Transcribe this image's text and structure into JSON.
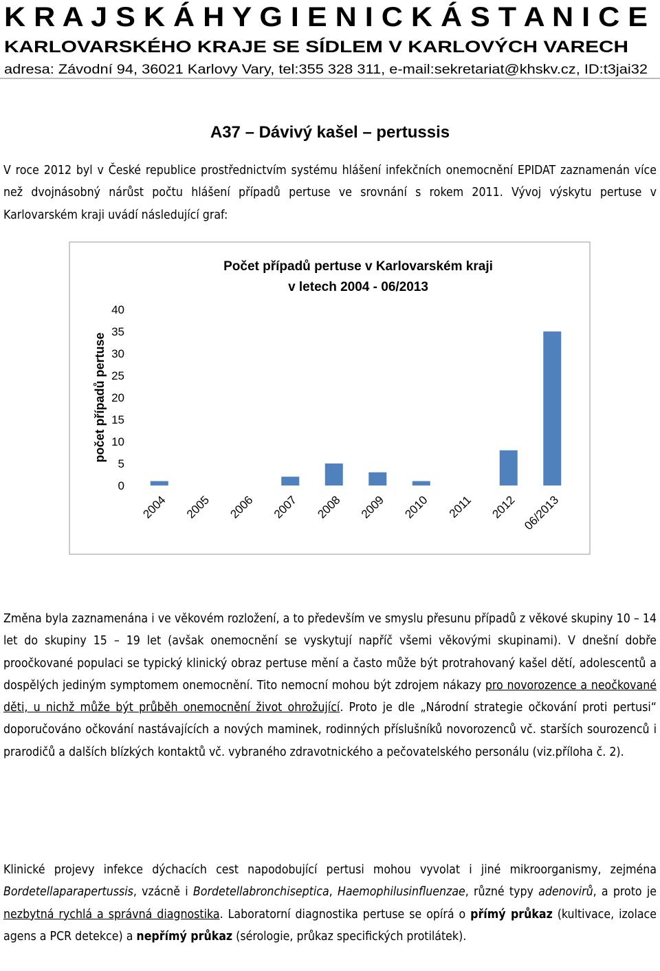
{
  "header": {
    "title": "K R A J S K Á   H Y G I E N I C K Á   S T A N I C E",
    "subtitle": "KARLOVARSKÉHO KRAJE SE SÍDLEM V KARLOVÝCH VARECH",
    "address": "adresa: Závodní 94, 36021 Karlovy Vary, tel:355 328 311,  e-mail:sekretariat@khskv.cz,  ID:t3jai32"
  },
  "heading": "A37 – Dávivý kašel – pertussis",
  "intro": "V roce 2012 byl v České republice prostřednictvím systému hlášení infekčních onemocnění EPIDAT zaznamenán více než dvojnásobný nárůst počtu hlášení případů pertuse ve srovnání s rokem 2011. Vývoj výskytu pertuse v Karlovarském kraji uvádí následující graf:",
  "chart_data": {
    "type": "bar",
    "title": [
      "Počet případů pertuse v Karlovarském kraji",
      "v letech 2004 - 06/2013"
    ],
    "y_label": "počet případů pertuse",
    "categories": [
      "2004",
      "2005",
      "2006",
      "2007",
      "2008",
      "2009",
      "2010",
      "2011",
      "2012",
      "06/2013"
    ],
    "values": [
      1,
      0,
      0,
      2,
      5,
      3,
      1,
      0,
      8,
      35
    ],
    "color": "#4f81bd",
    "ylim": [
      0,
      40
    ],
    "yticks": [
      0,
      5,
      10,
      15,
      20,
      25,
      30,
      35,
      40
    ],
    "grid": false
  },
  "paragraph_1": [
    "Změna byla zaznamenána i ve věkovém rozložení, a to především ve smyslu přesunu případů z věkové skupiny 10 – 14 let do skupiny 15 – 19 let (avšak onemocnění se vyskytují napříč všemi věkovými skupinami). V dnešní dobře proočkované populaci se typický klinický obraz pertuse mění a často může být protrahovaný kašel dětí, adolescentů a dospělých jediným symptomem onemocnění. Tito nemocní mohou být zdrojem nákazy ",
    "pro novorozence a neočkované děti, u nichž může být průběh onemocnění život ohrožující",
    ". Proto je dle „Národní strategie očkování proti pertusi“ doporučováno očkování nastávajících a nových maminek, rodinných příslušníků novorozenců vč. starších sourozenců i prarodičů a dalších blízkých kontaktů vč. vybraného zdravotnického a pečovatelského personálu (viz.příloha č. 2)."
  ],
  "paragraph_2": [
    "Klinické projevy infekce dýchacích cest napodobující pertusi  mohou vyvolat i jiné mikroorganismy, zejména ",
    "Bordetellaparapertussis",
    ", vzácně i ",
    "Bordetellabronchiseptica",
    ", ",
    "Haemophilusinfluenzae",
    ", různé typy ",
    "adenovirů",
    ", a proto je ",
    "nezbytná rychlá a správná diagnostika",
    ". Laboratorní diagnostika pertuse se opírá o ",
    "přímý průkaz",
    " (kultivace, izolace agens a PCR detekce) a ",
    "nepřímý průkaz",
    " (sérologie, průkaz specifických protilátek)."
  ]
}
